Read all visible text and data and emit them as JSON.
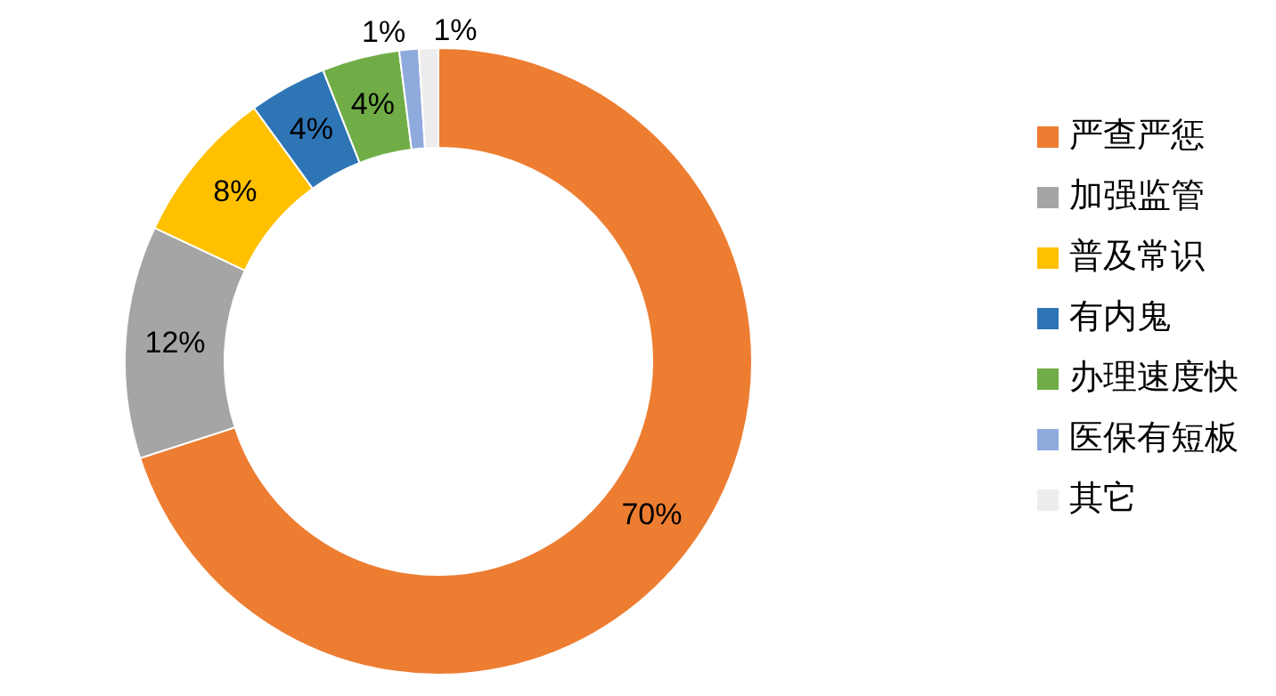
{
  "chart_data": {
    "type": "donut",
    "categories": [
      "严查严惩",
      "加强监管",
      "普及常识",
      "有内鬼",
      "办理速度快",
      "医保有短板",
      "其它"
    ],
    "values": [
      70,
      12,
      8,
      4,
      4,
      1,
      1
    ],
    "colors": [
      "#ed7d31",
      "#a5a5a5",
      "#ffc000",
      "#2e75b6",
      "#70ad47",
      "#8faadc",
      "#ededed"
    ],
    "value_labels": [
      "70%",
      "12%",
      "8%",
      "4%",
      "4%",
      "1%",
      "1%"
    ],
    "legend": "right"
  }
}
